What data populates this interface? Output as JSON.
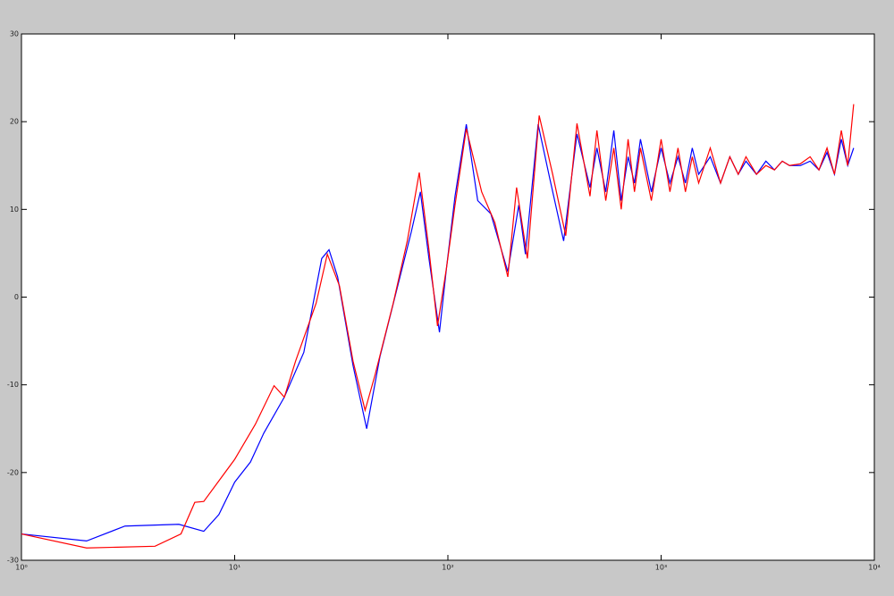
{
  "chart_data": {
    "type": "line",
    "xscale": "log",
    "grid": false,
    "xlim": [
      1,
      10000
    ],
    "xticks": [
      {
        "value": 1,
        "label": "10⁰"
      },
      {
        "value": 10,
        "label": "10¹"
      },
      {
        "value": 100,
        "label": "10²"
      },
      {
        "value": 1000,
        "label": "10³"
      },
      {
        "value": 10000,
        "label": "10⁴"
      }
    ],
    "ylim": [
      -30,
      30
    ],
    "yticks": [
      -30,
      -20,
      -10,
      0,
      10,
      20,
      30
    ],
    "series": [
      {
        "color": "#0000ff",
        "x": [
          1,
          2.02,
          3.06,
          5.47,
          7.16,
          8.43,
          10,
          11.86,
          13.7,
          17.1,
          21.1,
          25.6,
          27.7,
          30.4,
          35.9,
          41.6,
          48,
          58.2,
          67.3,
          74.3,
          81.5,
          91.3,
          98.6,
          108,
          122,
          138,
          159,
          191,
          215,
          231,
          265,
          300,
          349,
          403,
          464,
          500,
          550,
          600,
          650,
          700,
          750,
          800,
          900,
          1000,
          1100,
          1200,
          1300,
          1400,
          1500,
          1700,
          1900,
          2100,
          2300,
          2500,
          2800,
          3100,
          3400,
          3700,
          4000,
          4500,
          5000,
          5500,
          6000,
          6500,
          7000,
          7500,
          8000
        ],
        "values": [
          -27,
          -27.8,
          -26.1,
          -25.9,
          -26.7,
          -24.8,
          -21.1,
          -18.8,
          -15.5,
          -11.4,
          -6.3,
          4.4,
          5.4,
          2.3,
          -7.8,
          -15,
          -6.8,
          1.3,
          7.4,
          12,
          4.4,
          -4,
          3.4,
          11.5,
          19.7,
          11,
          9.5,
          2.9,
          10.5,
          4.9,
          19.7,
          13.6,
          6.4,
          18.6,
          12.5,
          17,
          12,
          19,
          11,
          16,
          13,
          18,
          12,
          17,
          13,
          16,
          13,
          17,
          14,
          16,
          13,
          16,
          14,
          15.5,
          14,
          15.5,
          14.5,
          15.5,
          15,
          15,
          15.5,
          14.5,
          16.5,
          14,
          18,
          15,
          17
        ]
      },
      {
        "color": "#ff0000",
        "x": [
          1,
          2.02,
          4.23,
          5.6,
          6.5,
          7.16,
          10,
          12.5,
          15.3,
          17.1,
          19.3,
          24.1,
          27.2,
          31,
          35.9,
          40.9,
          45.5,
          55.4,
          64.5,
          73.4,
          81.5,
          89.4,
          98.6,
          108,
          122,
          144,
          166,
          191,
          210,
          236,
          268,
          310,
          357,
          403,
          464,
          500,
          550,
          600,
          650,
          700,
          750,
          800,
          900,
          1000,
          1100,
          1200,
          1300,
          1400,
          1500,
          1700,
          1900,
          2100,
          2300,
          2500,
          2800,
          3100,
          3400,
          3700,
          4000,
          4500,
          5000,
          5500,
          6000,
          6500,
          7000,
          7500,
          8000
        ],
        "values": [
          -27,
          -28.6,
          -28.4,
          -27,
          -23.4,
          -23.3,
          -18.5,
          -14.5,
          -10.1,
          -11.4,
          -7.3,
          -0.7,
          4.9,
          1.3,
          -7.3,
          -12.9,
          -8.9,
          -0.7,
          6.4,
          14.2,
          5.4,
          -3.3,
          3.4,
          10.5,
          19.2,
          12,
          8.5,
          2.3,
          12.5,
          4.4,
          20.7,
          14,
          7,
          19.8,
          11.5,
          19,
          11,
          17,
          10,
          18,
          12,
          17,
          11,
          18,
          12,
          17,
          12,
          16,
          13,
          17,
          13,
          16,
          14,
          16,
          14,
          15,
          14.5,
          15.5,
          15,
          15.2,
          16,
          14.5,
          17,
          14,
          19,
          15,
          22
        ]
      }
    ]
  }
}
